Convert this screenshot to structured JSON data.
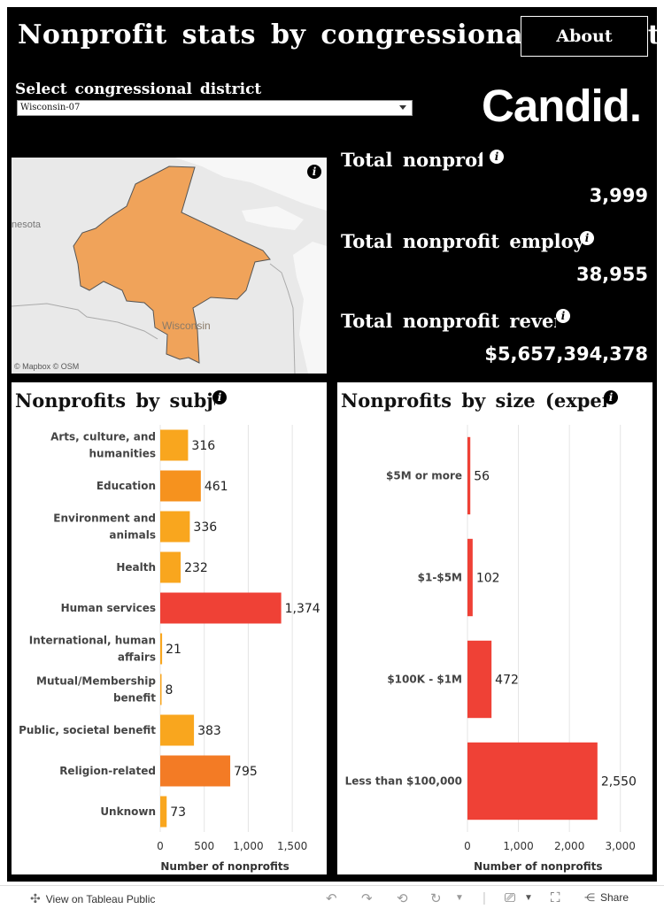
{
  "header": {
    "title": "Nonprofit stats by congressional district",
    "about_label": "About",
    "select_label": "Select congressional district",
    "selected_district": "Wisconsin-07",
    "logo_text": "Candid."
  },
  "map": {
    "state_label_1": "nesota",
    "state_label_2": "Wisconsin",
    "attribution": "© Mapbox  © OSM",
    "info_icon": "info-icon",
    "district_fill": "#f0a35a",
    "land_color": "#e9e9e9",
    "water_color": "#f7f7f7"
  },
  "stats": {
    "total_nonprofits_label": "Total nonprofits",
    "total_nonprofits_value": "3,999",
    "total_employees_label": "Total nonprofit employees",
    "total_employees_value": "38,955",
    "total_revenue_label": "Total nonprofit revenue",
    "total_revenue_value": "$5,657,394,378"
  },
  "chart_data": [
    {
      "type": "bar",
      "orientation": "horizontal",
      "title": "Nonprofits by subject",
      "categories": [
        [
          "Arts, culture, and",
          "humanities"
        ],
        [
          "Education"
        ],
        [
          "Environment and",
          "animals"
        ],
        [
          "Health"
        ],
        [
          "Human services"
        ],
        [
          "International, human",
          "affairs"
        ],
        [
          "Mutual/Membership",
          "benefit"
        ],
        [
          "Public, societal benefit"
        ],
        [
          "Religion-related"
        ],
        [
          "Unknown"
        ]
      ],
      "values": [
        316,
        461,
        336,
        232,
        1374,
        21,
        8,
        383,
        795,
        73
      ],
      "value_labels": [
        "316",
        "461",
        "336",
        "232",
        "1,374",
        "21",
        "8",
        "383",
        "795",
        "73"
      ],
      "colors": [
        "#f9a61e",
        "#f6921e",
        "#f9a61e",
        "#f9a61e",
        "#ef4136",
        "#f9a61e",
        "#f9a61e",
        "#f9a61e",
        "#f37b25",
        "#f9a61e"
      ],
      "xlabel": "Number of nonprofits",
      "xlim": [
        0,
        1750
      ],
      "xticks": [
        0,
        500,
        1000,
        1500
      ],
      "xtick_labels": [
        "0",
        "500",
        "1,000",
        "1,500"
      ],
      "grid": true
    },
    {
      "type": "bar",
      "orientation": "horizontal",
      "title": "Nonprofits by size (expenses)",
      "categories": [
        [
          "$5M or more"
        ],
        [
          "$1-$5M"
        ],
        [
          "$100K - $1M"
        ],
        [
          "Less than $100,000"
        ]
      ],
      "values": [
        56,
        102,
        472,
        2550
      ],
      "value_labels": [
        "56",
        "102",
        "472",
        "2,550"
      ],
      "colors": [
        "#ef4136",
        "#ef4136",
        "#ef4136",
        "#ef4136"
      ],
      "xlabel": "Number of nonprofits",
      "xlim": [
        0,
        3300
      ],
      "xticks": [
        0,
        1000,
        2000,
        3000
      ],
      "xtick_labels": [
        "0",
        "1,000",
        "2,000",
        "3,000"
      ],
      "grid": true
    }
  ],
  "footer": {
    "view_label": "View on Tableau Public",
    "share_label": "Share"
  }
}
